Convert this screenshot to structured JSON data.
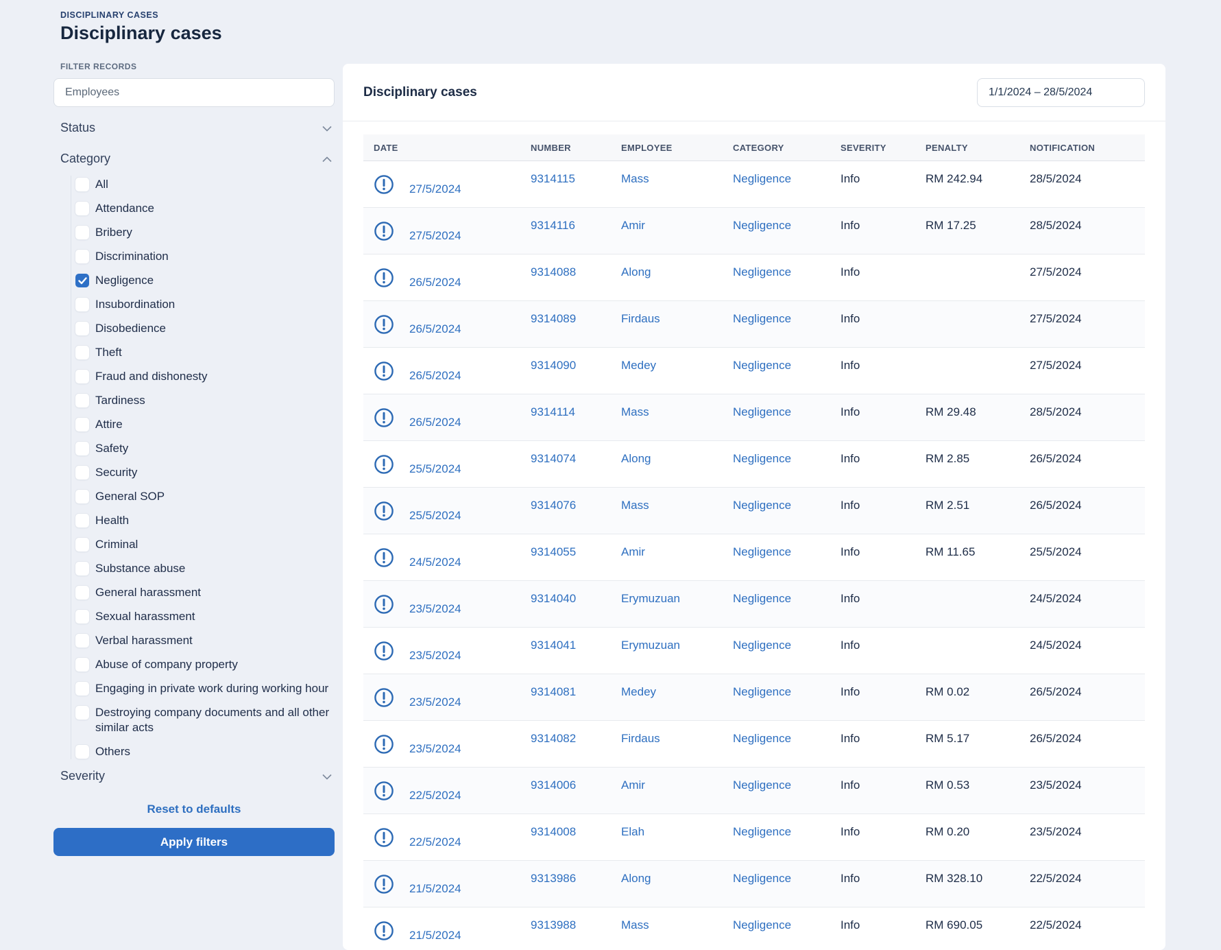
{
  "colors": {
    "page_bg": "#edf0f6",
    "card_bg": "#ffffff",
    "accent_blue": "#2d6ec6",
    "link_blue": "#2e6fc0",
    "checkbox_blue": "#2e70c6",
    "navy_text": "#17273f",
    "muted_label": "#5d6b80",
    "table_header_bg": "#f7f8fa",
    "row_alt_bg": "#fafbfd"
  },
  "page": {
    "breadcrumb": "DISCIPLINARY CASES",
    "title": "Disciplinary cases"
  },
  "sidebar": {
    "filter_records_label": "FILTER RECORDS",
    "employees_placeholder": "Employees",
    "status_label": "Status",
    "category_label": "Category",
    "severity_label": "Severity",
    "categories": [
      {
        "label": "All",
        "checked": false
      },
      {
        "label": "Attendance",
        "checked": false
      },
      {
        "label": "Bribery",
        "checked": false
      },
      {
        "label": "Discrimination",
        "checked": false
      },
      {
        "label": "Negligence",
        "checked": true
      },
      {
        "label": "Insubordination",
        "checked": false
      },
      {
        "label": "Disobedience",
        "checked": false
      },
      {
        "label": "Theft",
        "checked": false
      },
      {
        "label": "Fraud and dishonesty",
        "checked": false
      },
      {
        "label": "Tardiness",
        "checked": false
      },
      {
        "label": "Attire",
        "checked": false
      },
      {
        "label": "Safety",
        "checked": false
      },
      {
        "label": "Security",
        "checked": false
      },
      {
        "label": "General SOP",
        "checked": false
      },
      {
        "label": "Health",
        "checked": false
      },
      {
        "label": "Criminal",
        "checked": false
      },
      {
        "label": "Substance abuse",
        "checked": false
      },
      {
        "label": "General harassment",
        "checked": false
      },
      {
        "label": "Sexual harassment",
        "checked": false
      },
      {
        "label": "Verbal harassment",
        "checked": false
      },
      {
        "label": "Abuse of company property",
        "checked": false
      },
      {
        "label": "Engaging in private work during working hour",
        "checked": false
      },
      {
        "label": "Destroying company documents and all other similar acts",
        "checked": false
      },
      {
        "label": "Others",
        "checked": false
      }
    ],
    "reset_label": "Reset to defaults",
    "apply_label": "Apply filters"
  },
  "main": {
    "title": "Disciplinary cases",
    "date_range": "1/1/2024 – 28/5/2024",
    "table": {
      "columns": [
        "DATE",
        "NUMBER",
        "EMPLOYEE",
        "CATEGORY",
        "SEVERITY",
        "PENALTY",
        "NOTIFICATION"
      ],
      "rows": [
        {
          "date": "27/5/2024",
          "number": "9314115",
          "employee": "Mass",
          "category": "Negligence",
          "severity": "Info",
          "penalty": "RM 242.94",
          "notification": "28/5/2024"
        },
        {
          "date": "27/5/2024",
          "number": "9314116",
          "employee": "Amir",
          "category": "Negligence",
          "severity": "Info",
          "penalty": "RM 17.25",
          "notification": "28/5/2024"
        },
        {
          "date": "26/5/2024",
          "number": "9314088",
          "employee": "Along",
          "category": "Negligence",
          "severity": "Info",
          "penalty": "",
          "notification": "27/5/2024"
        },
        {
          "date": "26/5/2024",
          "number": "9314089",
          "employee": "Firdaus",
          "category": "Negligence",
          "severity": "Info",
          "penalty": "",
          "notification": "27/5/2024"
        },
        {
          "date": "26/5/2024",
          "number": "9314090",
          "employee": "Medey",
          "category": "Negligence",
          "severity": "Info",
          "penalty": "",
          "notification": "27/5/2024"
        },
        {
          "date": "26/5/2024",
          "number": "9314114",
          "employee": "Mass",
          "category": "Negligence",
          "severity": "Info",
          "penalty": "RM 29.48",
          "notification": "28/5/2024"
        },
        {
          "date": "25/5/2024",
          "number": "9314074",
          "employee": "Along",
          "category": "Negligence",
          "severity": "Info",
          "penalty": "RM 2.85",
          "notification": "26/5/2024"
        },
        {
          "date": "25/5/2024",
          "number": "9314076",
          "employee": "Mass",
          "category": "Negligence",
          "severity": "Info",
          "penalty": "RM 2.51",
          "notification": "26/5/2024"
        },
        {
          "date": "24/5/2024",
          "number": "9314055",
          "employee": "Amir",
          "category": "Negligence",
          "severity": "Info",
          "penalty": "RM 11.65",
          "notification": "25/5/2024"
        },
        {
          "date": "23/5/2024",
          "number": "9314040",
          "employee": "Erymuzuan",
          "category": "Negligence",
          "severity": "Info",
          "penalty": "",
          "notification": "24/5/2024"
        },
        {
          "date": "23/5/2024",
          "number": "9314041",
          "employee": "Erymuzuan",
          "category": "Negligence",
          "severity": "Info",
          "penalty": "",
          "notification": "24/5/2024"
        },
        {
          "date": "23/5/2024",
          "number": "9314081",
          "employee": "Medey",
          "category": "Negligence",
          "severity": "Info",
          "penalty": "RM 0.02",
          "notification": "26/5/2024"
        },
        {
          "date": "23/5/2024",
          "number": "9314082",
          "employee": "Firdaus",
          "category": "Negligence",
          "severity": "Info",
          "penalty": "RM 5.17",
          "notification": "26/5/2024"
        },
        {
          "date": "22/5/2024",
          "number": "9314006",
          "employee": "Amir",
          "category": "Negligence",
          "severity": "Info",
          "penalty": "RM 0.53",
          "notification": "23/5/2024"
        },
        {
          "date": "22/5/2024",
          "number": "9314008",
          "employee": "Elah",
          "category": "Negligence",
          "severity": "Info",
          "penalty": "RM 0.20",
          "notification": "23/5/2024"
        },
        {
          "date": "21/5/2024",
          "number": "9313986",
          "employee": "Along",
          "category": "Negligence",
          "severity": "Info",
          "penalty": "RM 328.10",
          "notification": "22/5/2024"
        },
        {
          "date": "21/5/2024",
          "number": "9313988",
          "employee": "Mass",
          "category": "Negligence",
          "severity": "Info",
          "penalty": "RM 690.05",
          "notification": "22/5/2024"
        }
      ]
    }
  }
}
